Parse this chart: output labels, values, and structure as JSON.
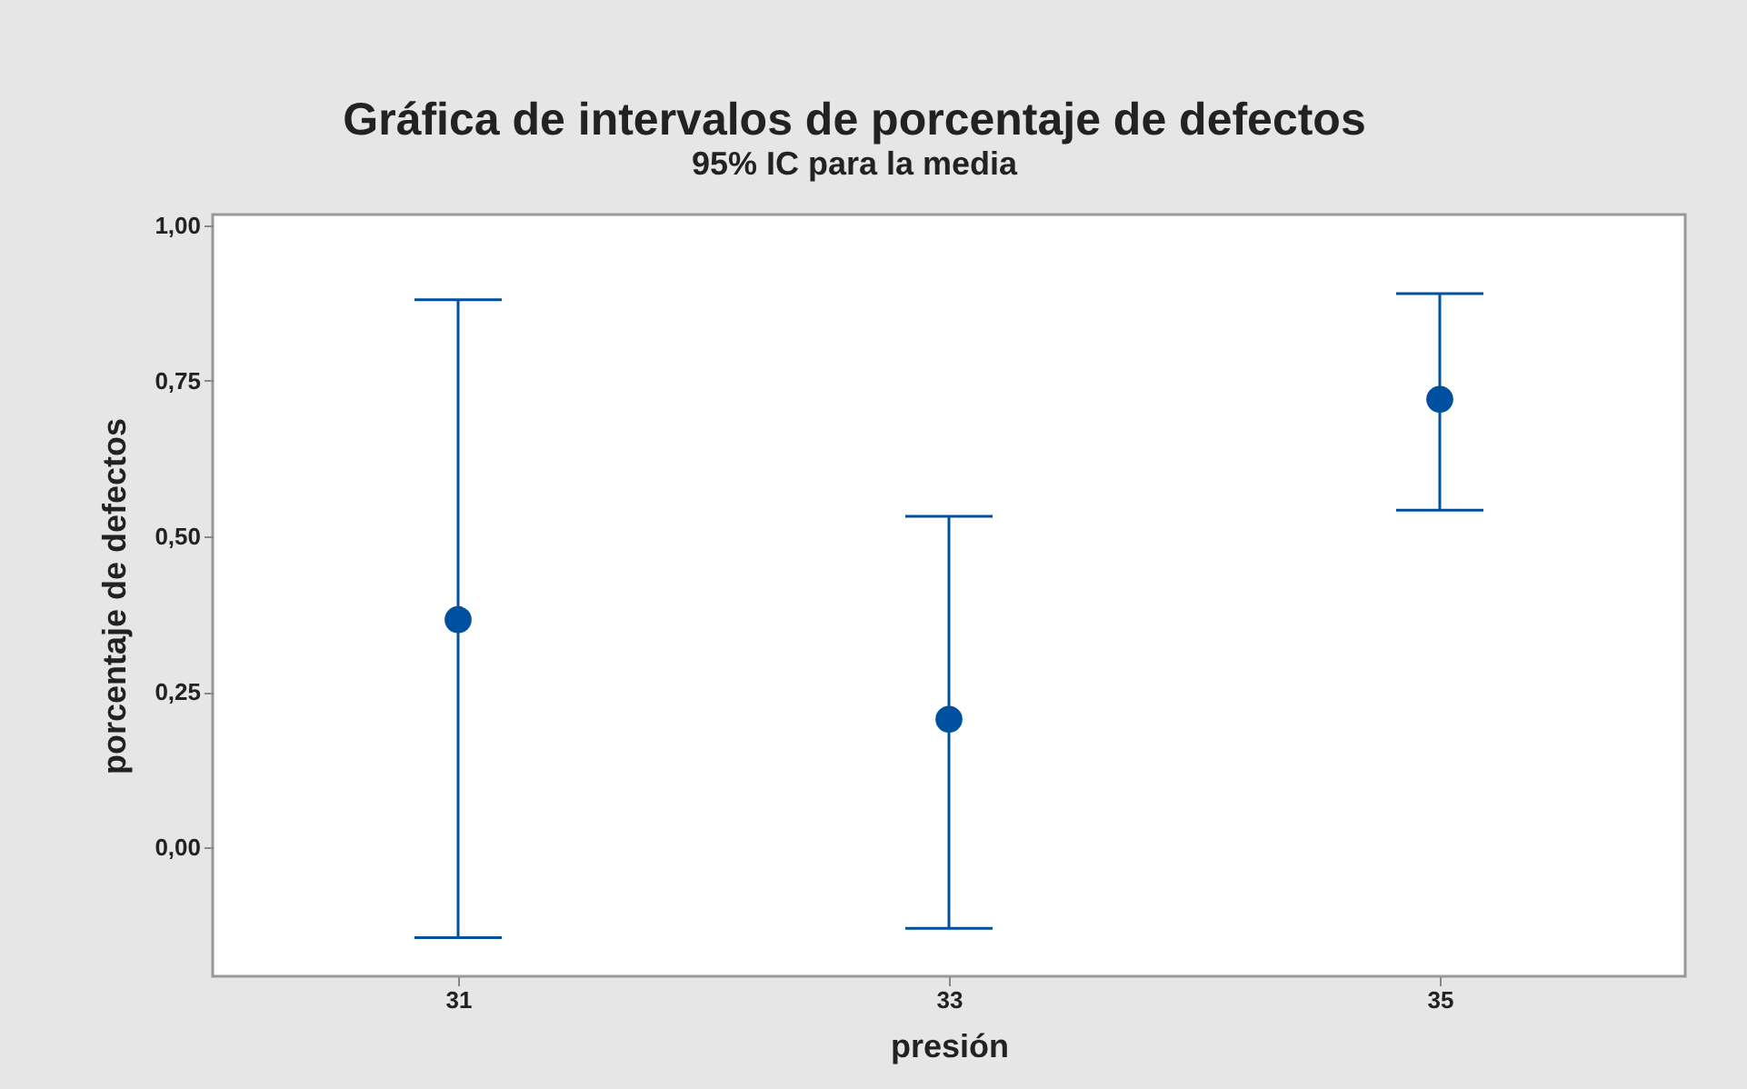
{
  "chart_data": {
    "type": "scatter",
    "title": "Gráfica de intervalos de porcentaje de defectos",
    "subtitle": "95% IC para la media",
    "xlabel": "presión",
    "ylabel": "porcentaje de defectos",
    "categories": [
      "31",
      "33",
      "35"
    ],
    "color": "#0050a0",
    "values": [
      0.366,
      0.206,
      0.72
    ],
    "errors": [
      [
        -0.145,
        0.88
      ],
      [
        -0.13,
        0.532
      ],
      [
        0.542,
        0.89
      ]
    ],
    "ylim": [
      -0.207,
      1.017
    ],
    "yticks": [
      {
        "value": 0,
        "label": "0,00"
      },
      {
        "value": 0.25,
        "label": "0,25"
      },
      {
        "value": 0.5,
        "label": "0,50"
      },
      {
        "value": 0.75,
        "label": "0,75"
      },
      {
        "value": 1,
        "label": "1,00"
      }
    ],
    "marker": "circle",
    "grid": false
  }
}
